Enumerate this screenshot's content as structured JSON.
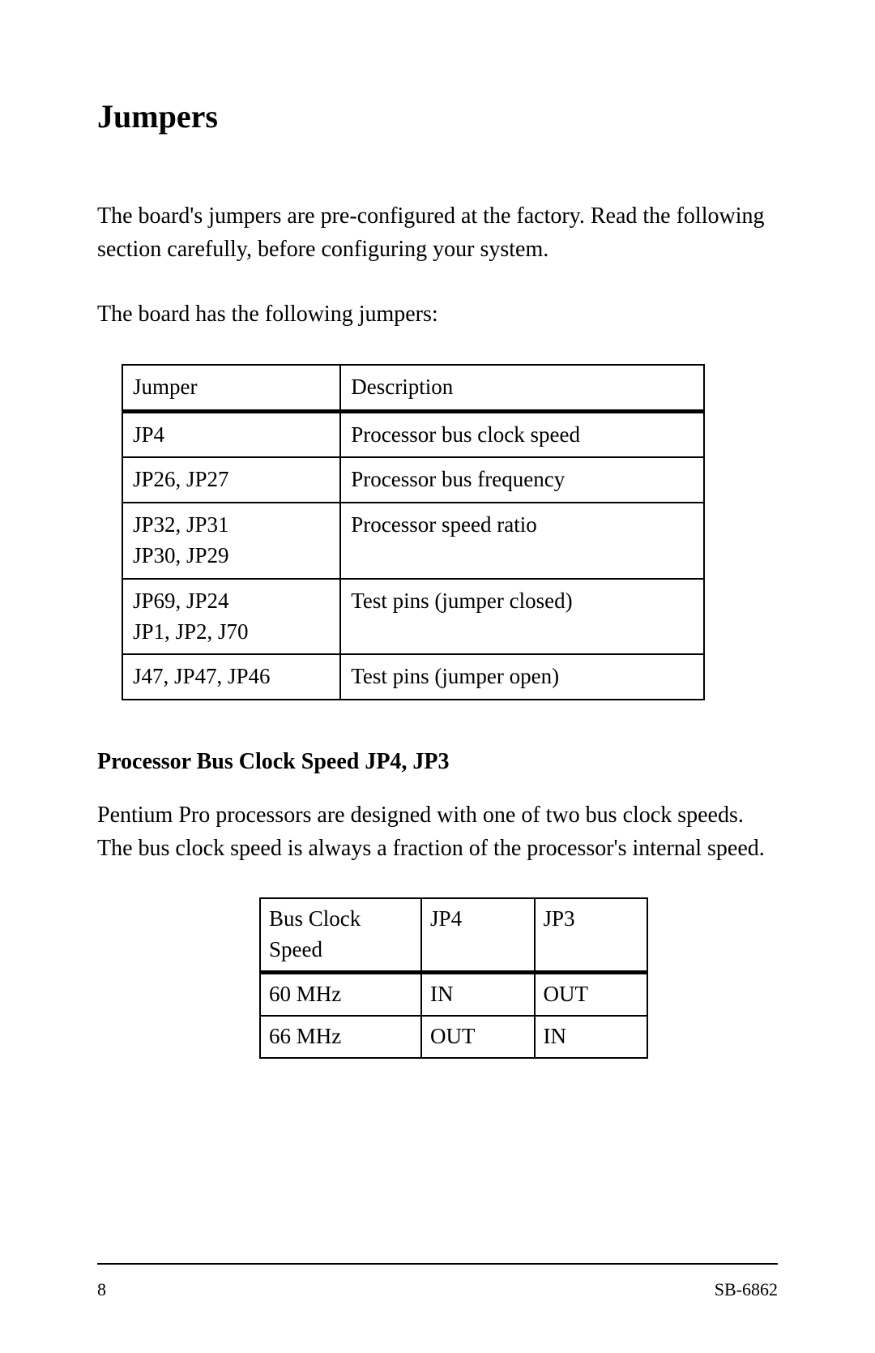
{
  "page": {
    "title": "Jumpers",
    "intro1": "The board's jumpers are pre-configured at the factory. Read the following section carefully, before configuring your system.",
    "intro2": "The board has the following jumpers:",
    "section_heading": "Processor Bus Clock Speed  JP4, JP3",
    "section_text": "Pentium Pro processors are designed with one of two bus clock speeds. The bus clock speed is always a fraction of the processor's internal speed."
  },
  "table1": {
    "columns": [
      "Jumper",
      "Description"
    ],
    "rows": [
      [
        "JP4",
        "Processor bus clock speed"
      ],
      [
        "JP26, JP27",
        "Processor bus frequency"
      ],
      [
        "JP32, JP31\nJP30, JP29",
        "Processor speed ratio"
      ],
      [
        "JP69, JP24\nJP1, JP2, J70",
        "Test pins (jumper closed)"
      ],
      [
        "J47, JP47, JP46",
        "Test pins (jumper open)"
      ]
    ]
  },
  "table2": {
    "columns": [
      "Bus Clock Speed",
      "JP4",
      "JP3"
    ],
    "rows": [
      [
        "60 MHz",
        "IN",
        "OUT"
      ],
      [
        "66 MHz",
        "OUT",
        "IN"
      ]
    ]
  },
  "footer": {
    "page_number": "8",
    "doc_id": "SB-6862"
  },
  "styling": {
    "background_color": "#ffffff",
    "text_color": "#000000",
    "border_color": "#000000",
    "title_fontsize": 40,
    "body_fontsize": 28,
    "table_fontsize": 27,
    "footer_fontsize": 22,
    "header_row_border_bottom_width": 5,
    "cell_border_width": 2,
    "font_family": "Times New Roman"
  }
}
